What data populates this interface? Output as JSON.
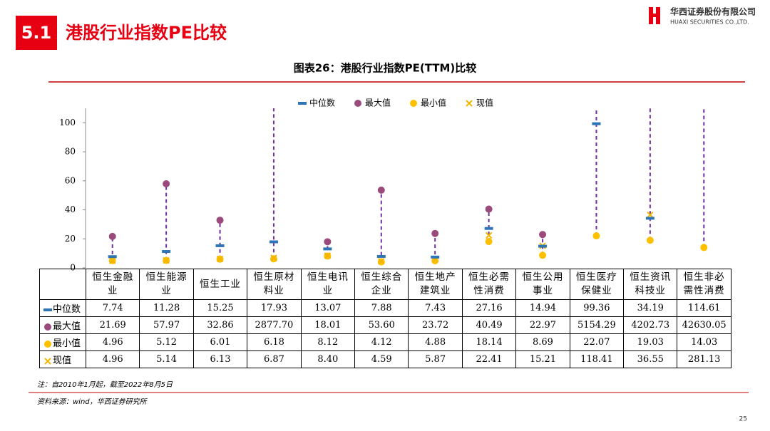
{
  "header": {
    "section": "5.1",
    "title": "港股行业指数PE比较",
    "company": "华西证券股份有限公司",
    "company_en": "HUAXI SECURITIES CO.,LTD."
  },
  "page_number": 25,
  "chart_data": {
    "type": "range-dot",
    "title": "图表26：港股行业指数PE(TTM)比较",
    "categories": [
      "恒生金融业",
      "恒生能源业",
      "恒生工业",
      "恒生原材料业",
      "恒生电讯业",
      "恒生综合企业",
      "恒生地产建筑业",
      "恒生必需性消费",
      "恒生公用事业",
      "恒生医疗保健业",
      "恒生资讯科技业",
      "恒生非必需性消费"
    ],
    "series": [
      {
        "name": "中位数",
        "marker": "dash",
        "color": "#2e75b6",
        "values": [
          7.74,
          11.28,
          15.25,
          17.93,
          13.07,
          7.88,
          7.43,
          27.16,
          14.94,
          99.36,
          34.19,
          114.61
        ],
        "value_labels": [
          "7.74",
          "11.28",
          "15.25",
          "17.93",
          "13.07",
          "7.88",
          "7.43",
          "27.16",
          "14.94",
          "99.36",
          "34.19",
          "114.61"
        ]
      },
      {
        "name": "最大值",
        "marker": "dot",
        "color": "#9b4a7c",
        "values": [
          21.69,
          57.97,
          32.86,
          2877.7,
          18.01,
          53.6,
          23.72,
          40.49,
          22.97,
          5154.29,
          4202.73,
          42630.05
        ],
        "value_labels": [
          "21.69",
          "57.97",
          "32.86",
          "2877.70",
          "18.01",
          "53.60",
          "23.72",
          "40.49",
          "22.97",
          "5154.29",
          "4202.73",
          "42630.05"
        ]
      },
      {
        "name": "最小值",
        "marker": "dot",
        "color": "#ffc000",
        "values": [
          4.96,
          5.12,
          6.01,
          6.18,
          8.12,
          4.12,
          4.88,
          18.14,
          8.69,
          22.07,
          19.03,
          14.03
        ],
        "value_labels": [
          "4.96",
          "5.12",
          "6.01",
          "6.18",
          "8.12",
          "4.12",
          "4.88",
          "18.14",
          "8.69",
          "22.07",
          "19.03",
          "14.03"
        ]
      },
      {
        "name": "现值",
        "marker": "x",
        "color": "#f2b600",
        "values": [
          4.96,
          5.14,
          6.13,
          6.87,
          8.4,
          4.59,
          5.87,
          22.41,
          15.21,
          118.41,
          36.55,
          281.13
        ],
        "value_labels": [
          "4.96",
          "5.14",
          "6.13",
          "6.87",
          "8.40",
          "4.59",
          "5.87",
          "22.41",
          "15.21",
          "118.41",
          "36.55",
          "281.13"
        ]
      }
    ],
    "range_color": "#7030a0",
    "ylim": [
      0,
      110
    ],
    "yticks": [
      0,
      20,
      40,
      60,
      80,
      100
    ],
    "note": "注：自2010年1月起，截至2022年8月5日",
    "source": "资料来源：wind，华西证券研究所"
  }
}
